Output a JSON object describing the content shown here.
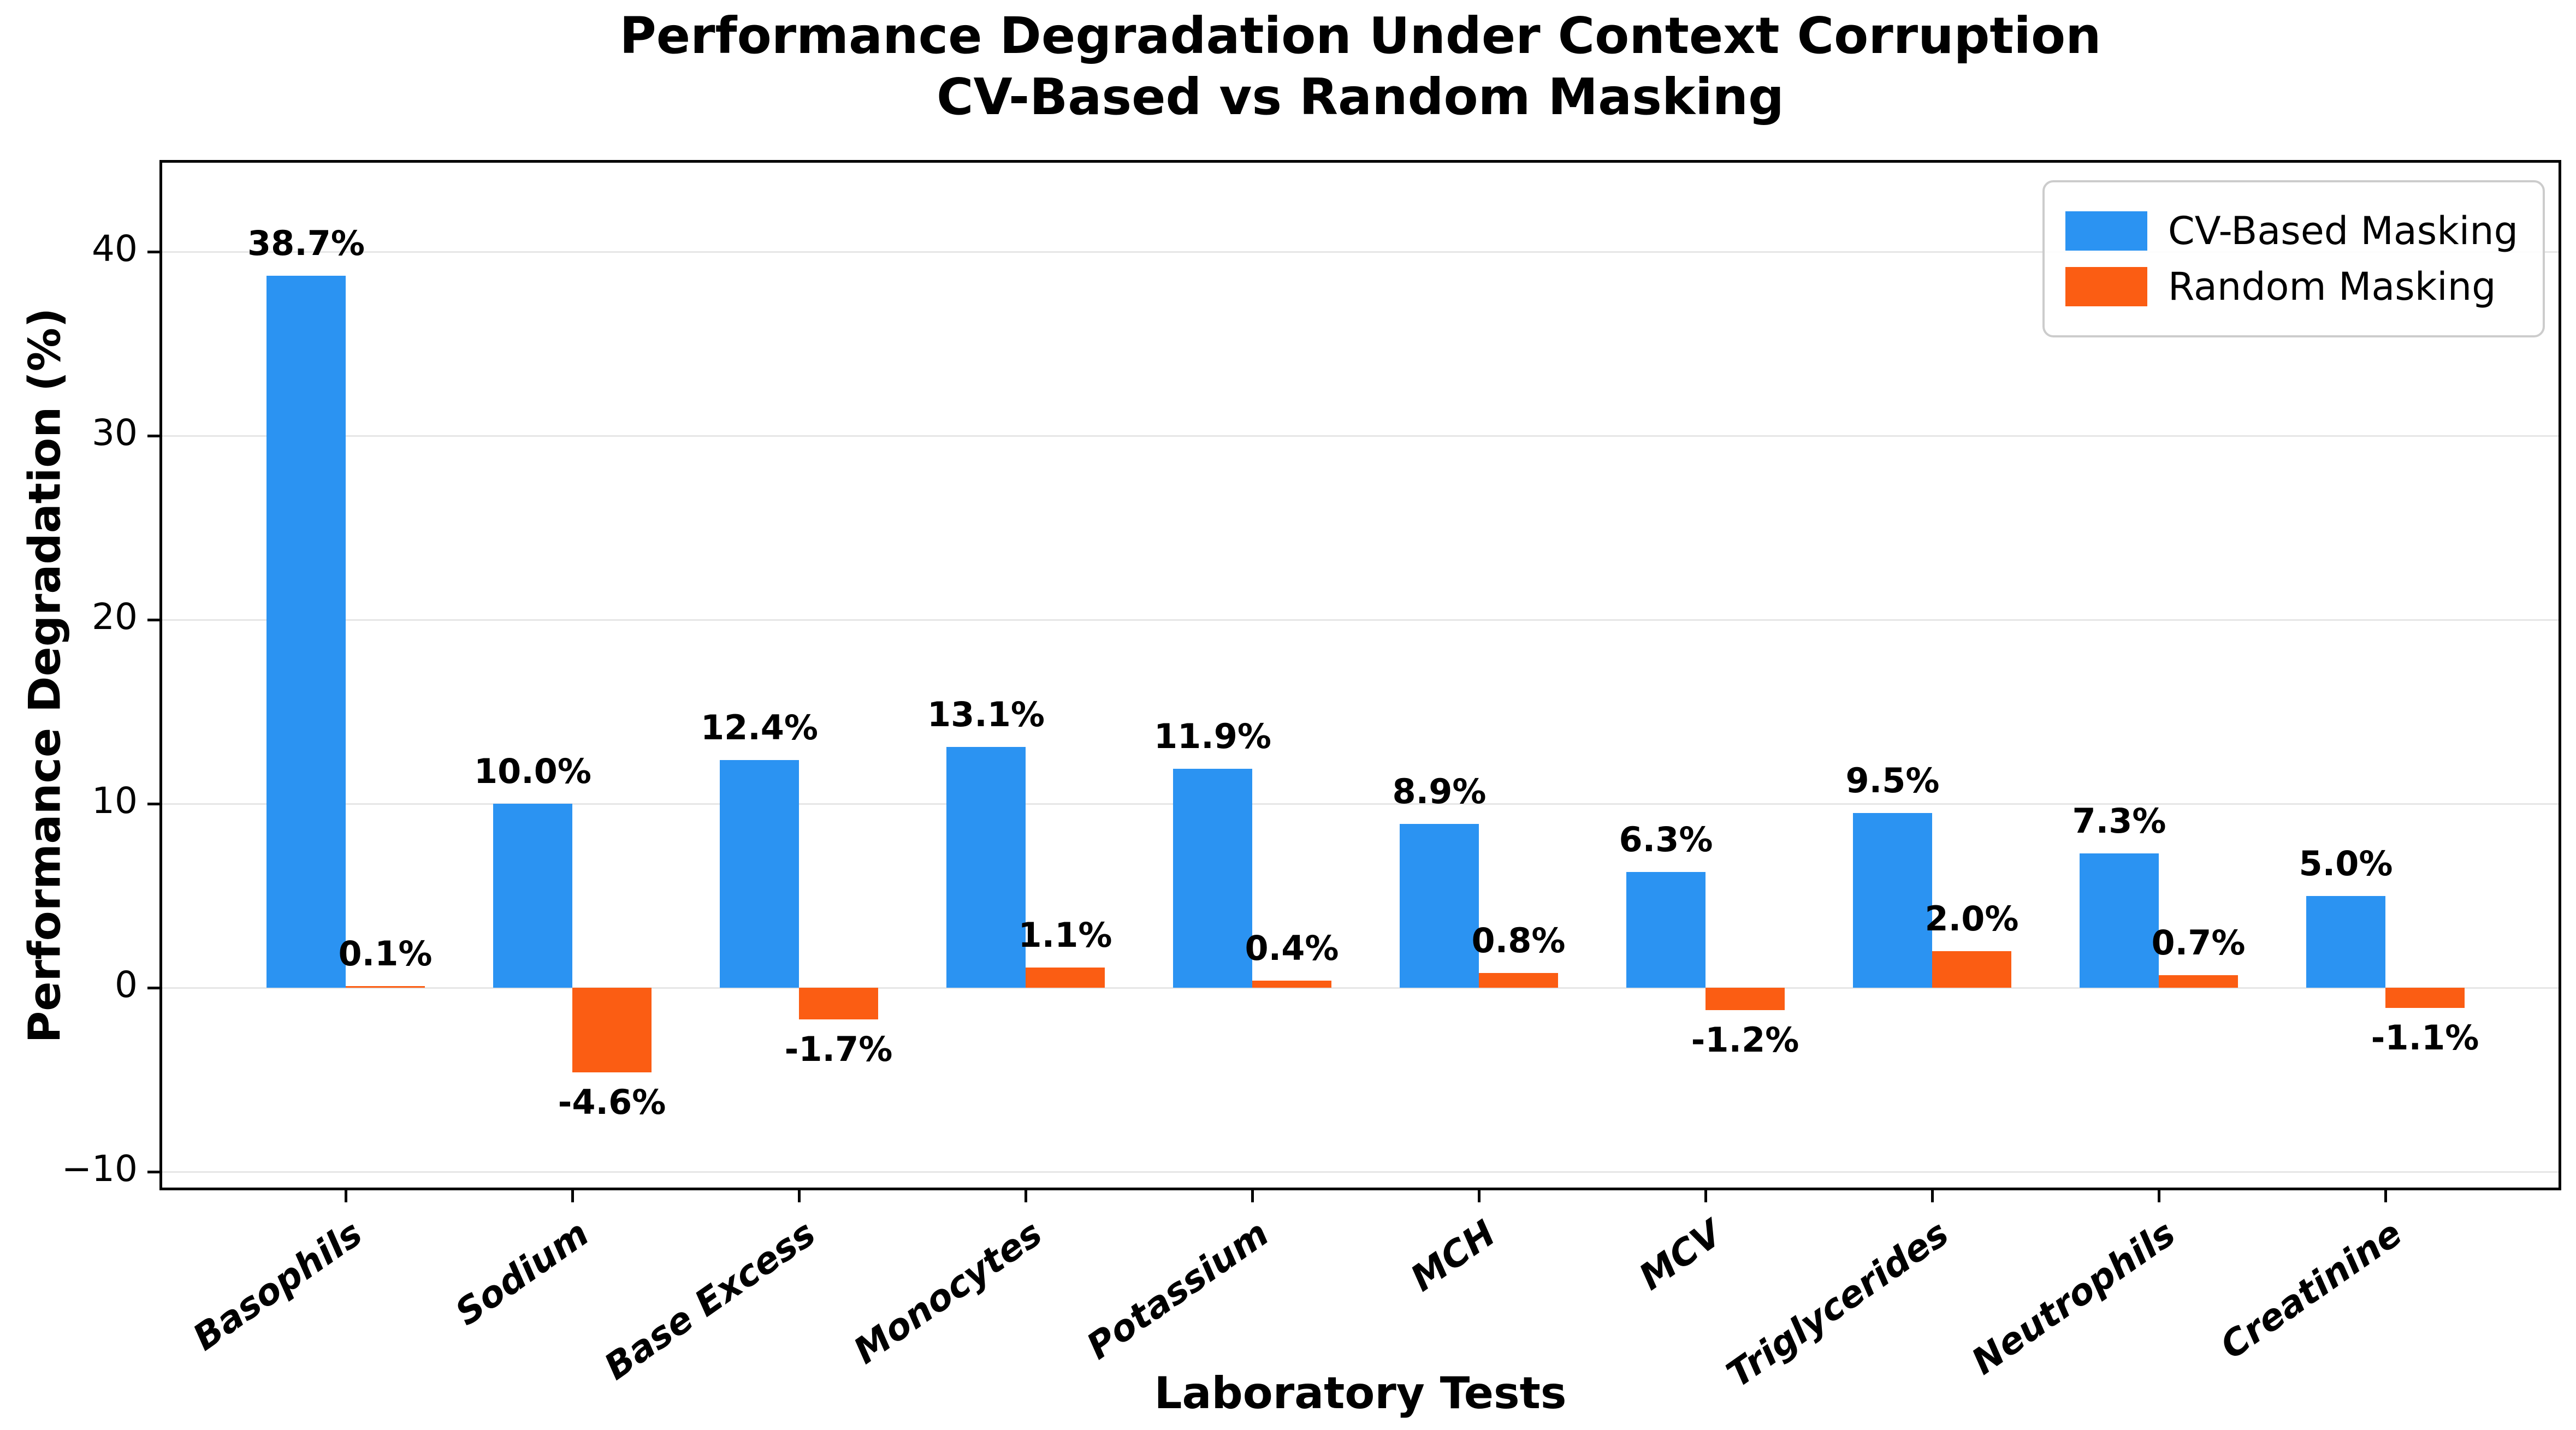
{
  "chart_data": {
    "type": "bar",
    "title": "Performance Degradation Under Context Corruption\nCV-Based vs Random Masking",
    "title_line1": "Performance Degradation Under Context Corruption",
    "title_line2": "CV-Based vs Random Masking",
    "xlabel": "Laboratory Tests",
    "ylabel": "Performance Degradation (%)",
    "categories": [
      "Basophils",
      "Sodium",
      "Base Excess",
      "Monocytes",
      "Potassium",
      "MCH",
      "MCV",
      "Triglycerides",
      "Neutrophils",
      "Creatinine"
    ],
    "series": [
      {
        "name": "CV-Based Masking",
        "color": "#2B93F2",
        "values": [
          38.7,
          10.0,
          12.4,
          13.1,
          11.9,
          8.9,
          6.3,
          9.5,
          7.3,
          5.0
        ],
        "labels": [
          "38.7%",
          "10.0%",
          "12.4%",
          "13.1%",
          "11.9%",
          "8.9%",
          "6.3%",
          "9.5%",
          "7.3%",
          "5.0%"
        ]
      },
      {
        "name": "Random Masking",
        "color": "#FB5D13",
        "values": [
          0.1,
          -4.6,
          -1.7,
          1.1,
          0.4,
          0.8,
          -1.2,
          2.0,
          0.7,
          -1.1
        ],
        "labels": [
          "0.1%",
          "-4.6%",
          "-1.7%",
          "1.1%",
          "0.4%",
          "0.8%",
          "-1.2%",
          "2.0%",
          "0.7%",
          "-1.1%"
        ]
      }
    ],
    "ylim": [
      -11,
      45
    ],
    "yticks": [
      -10,
      0,
      10,
      20,
      30,
      40
    ],
    "ytick_labels": [
      "−10",
      "0",
      "10",
      "20",
      "30",
      "40"
    ],
    "grid": true,
    "legend_position": "upper right"
  },
  "colors": {
    "grid": "#e6e6e6",
    "axis": "#000000",
    "legend_border": "#cccccc",
    "background": "#ffffff"
  }
}
